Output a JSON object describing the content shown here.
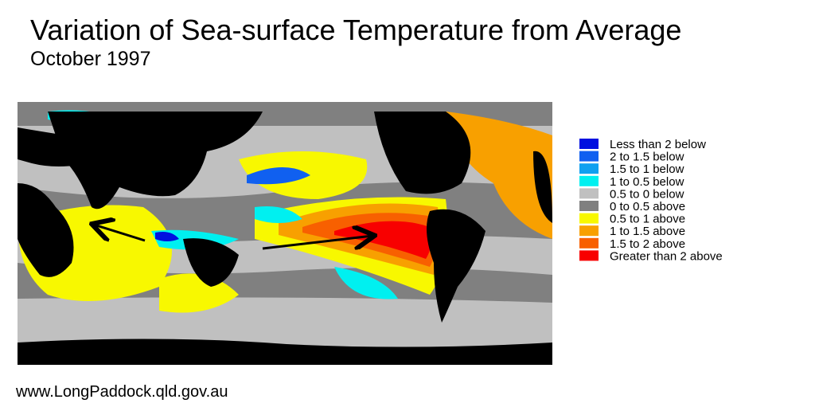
{
  "title": "Variation of Sea-surface Temperature from Average",
  "subtitle": "October 1997",
  "legend": [
    {
      "label": "Less than 2 below",
      "color": "#0010e0"
    },
    {
      "label": "2 to 1.5 below",
      "color": "#1060f0"
    },
    {
      "label": "1.5 to 1 below",
      "color": "#10a0f0"
    },
    {
      "label": "1 to 0.5 below",
      "color": "#00f0f0"
    },
    {
      "label": "0.5 to 0 below",
      "color": "#c0c0c0"
    },
    {
      "label": "0 to 0.5 above",
      "color": "#808080"
    },
    {
      "label": "0.5 to 1 above",
      "color": "#f8f800"
    },
    {
      "label": "1 to 1.5 above",
      "color": "#f8a000"
    },
    {
      "label": "1.5 to 2 above",
      "color": "#f86000"
    },
    {
      "label": "Greater than 2 above",
      "color": "#f80000"
    }
  ],
  "source": "www.LongPaddock.qld.gov.au"
}
